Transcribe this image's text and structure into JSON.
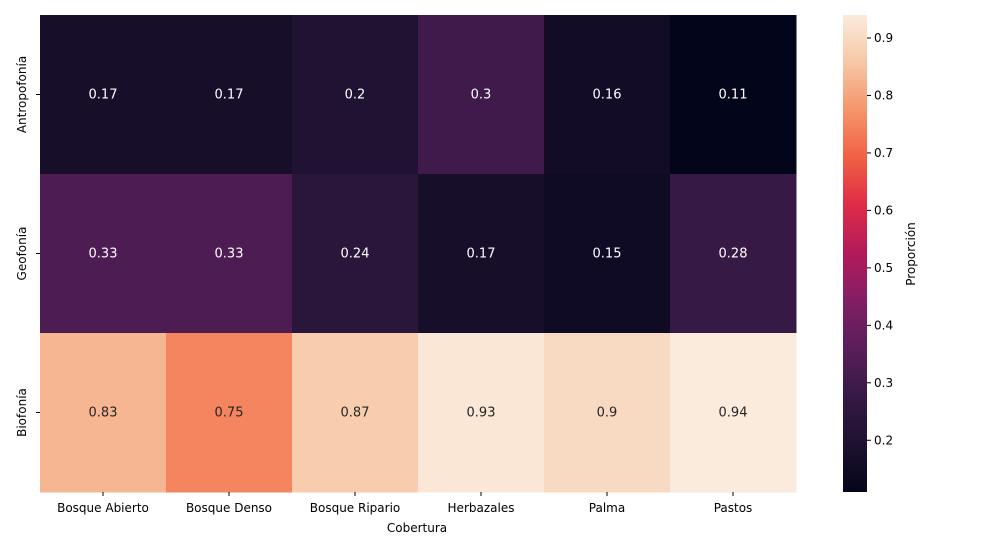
{
  "chart_data": {
    "type": "heatmap",
    "title": "",
    "xlabel": "Cobertura",
    "ylabel": "",
    "x_categories": [
      "Bosque Abierto",
      "Bosque Denso",
      "Bosque Ripario",
      "Herbazales",
      "Palma",
      "Pastos"
    ],
    "y_categories": [
      "Antropofonía",
      "Geofonía",
      "Biofonía"
    ],
    "values": [
      [
        0.17,
        0.17,
        0.2,
        0.3,
        0.16,
        0.11
      ],
      [
        0.33,
        0.33,
        0.24,
        0.17,
        0.15,
        0.28
      ],
      [
        0.83,
        0.75,
        0.87,
        0.93,
        0.9,
        0.94
      ]
    ],
    "colorbar": {
      "label": "Proporción",
      "range": [
        0.11,
        0.94
      ],
      "ticks": [
        "0.2",
        "0.3",
        "0.4",
        "0.5",
        "0.6",
        "0.7",
        "0.8",
        "0.9"
      ],
      "colormap": "rocket"
    }
  }
}
